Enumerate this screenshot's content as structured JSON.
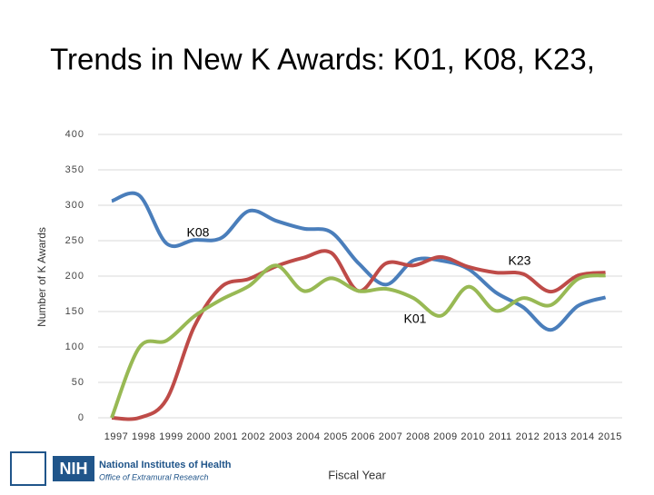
{
  "chart_data": {
    "type": "line",
    "title": "Trends in New K Awards:  K01, K08, K23,",
    "y_label": "Number of K Awards",
    "x_label": "Fiscal Year",
    "categories": [
      "1997",
      "1998",
      "1999",
      "2000",
      "2001",
      "2002",
      "2003",
      "2004",
      "2005",
      "2006",
      "2007",
      "2008",
      "2009",
      "2010",
      "2011",
      "2012",
      "2013",
      "2014",
      "2015"
    ],
    "series": [
      {
        "name": "K08",
        "color": "#4a7ebb",
        "values": [
          306,
          314,
          246,
          251,
          254,
          292,
          278,
          267,
          262,
          218,
          188,
          222,
          222,
          210,
          177,
          156,
          124,
          158,
          170
        ]
      },
      {
        "name": "K23",
        "color": "#be4b48",
        "values": [
          0,
          0,
          26,
          128,
          185,
          196,
          214,
          226,
          233,
          179,
          218,
          215,
          227,
          213,
          205,
          203,
          178,
          201,
          205
        ]
      },
      {
        "name": "K01",
        "color": "#98b954",
        "values": [
          0,
          99,
          109,
          143,
          167,
          186,
          215,
          179,
          197,
          179,
          182,
          169,
          144,
          185,
          151,
          169,
          159,
          196,
          201
        ]
      }
    ],
    "annotations": [
      "K08",
      "K23",
      "K01"
    ],
    "ylim": [
      0,
      400
    ],
    "yticks": [
      0,
      50,
      100,
      150,
      200,
      250,
      300,
      350,
      400
    ],
    "grid": true
  },
  "logo": {
    "abbr": "NIH",
    "name": "National Institutes of Health",
    "office": "Office of Extramural Research"
  }
}
